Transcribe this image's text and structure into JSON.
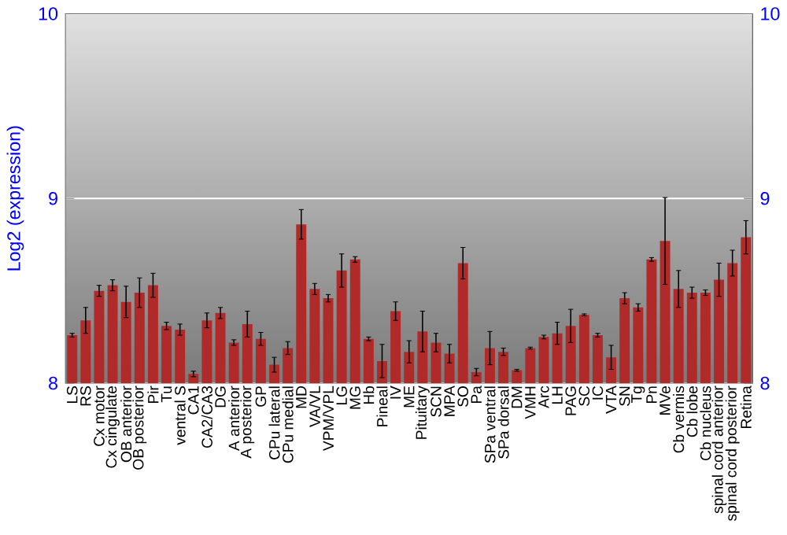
{
  "chart_data": {
    "type": "bar",
    "ylabel": "Log2 (expression)",
    "categories": [
      "LS",
      "RS",
      "Cx motor",
      "Cx cingulate",
      "OB anterior",
      "OB posterior",
      "Pir",
      "Tu",
      "ventral S",
      "CA1",
      "CA2/CA3",
      "DG",
      "A anterior",
      "A posterior",
      "GP",
      "CPu lateral",
      "CPu medial",
      "MD",
      "VA/VL",
      "VPM/VPL",
      "LG",
      "MG",
      "Hb",
      "Pineal",
      "IV",
      "ME",
      "Pituitary",
      "SCN",
      "MPA",
      "SO",
      "Pa",
      "SPa ventral",
      "SPa dorsal",
      "DM",
      "VMH",
      "Arc",
      "LH",
      "PAG",
      "SC",
      "IC",
      "VTA",
      "SN",
      "Tg",
      "Pn",
      "MVe",
      "Cb vermis",
      "Cb lobe",
      "Cb nucleus",
      "spinal cord anterior",
      "spinal cord posterior",
      "Retina"
    ],
    "values": [
      8.26,
      8.34,
      8.5,
      8.53,
      8.44,
      8.49,
      8.53,
      8.31,
      8.29,
      8.05,
      8.34,
      8.38,
      8.22,
      8.32,
      8.24,
      8.1,
      8.19,
      8.86,
      8.51,
      8.46,
      8.61,
      8.67,
      8.24,
      8.12,
      8.39,
      8.17,
      8.28,
      8.22,
      8.16,
      8.65,
      8.06,
      8.19,
      8.17,
      8.07,
      8.19,
      8.25,
      8.27,
      8.31,
      8.37,
      8.26,
      8.14,
      8.46,
      8.41,
      8.67,
      8.77,
      8.51,
      8.49,
      8.49,
      8.56,
      8.65,
      8.79
    ],
    "errors": [
      0.01,
      0.07,
      0.03,
      0.03,
      0.085,
      0.08,
      0.065,
      0.02,
      0.03,
      0.015,
      0.04,
      0.03,
      0.015,
      0.07,
      0.035,
      0.04,
      0.035,
      0.08,
      0.03,
      0.02,
      0.09,
      0.015,
      0.01,
      0.09,
      0.05,
      0.06,
      0.11,
      0.05,
      0.05,
      0.085,
      0.02,
      0.09,
      0.02,
      0.005,
      0.005,
      0.01,
      0.06,
      0.09,
      0.005,
      0.01,
      0.065,
      0.03,
      0.02,
      0.01,
      0.235,
      0.1,
      0.03,
      0.015,
      0.09,
      0.07,
      0.09
    ],
    "color": "#b02a2a",
    "ylim": [
      8,
      10
    ],
    "yticks": [
      8,
      9,
      10
    ],
    "y2lim": [
      8,
      10
    ],
    "y2ticks": [
      8,
      9,
      10
    ],
    "grid": "y"
  }
}
